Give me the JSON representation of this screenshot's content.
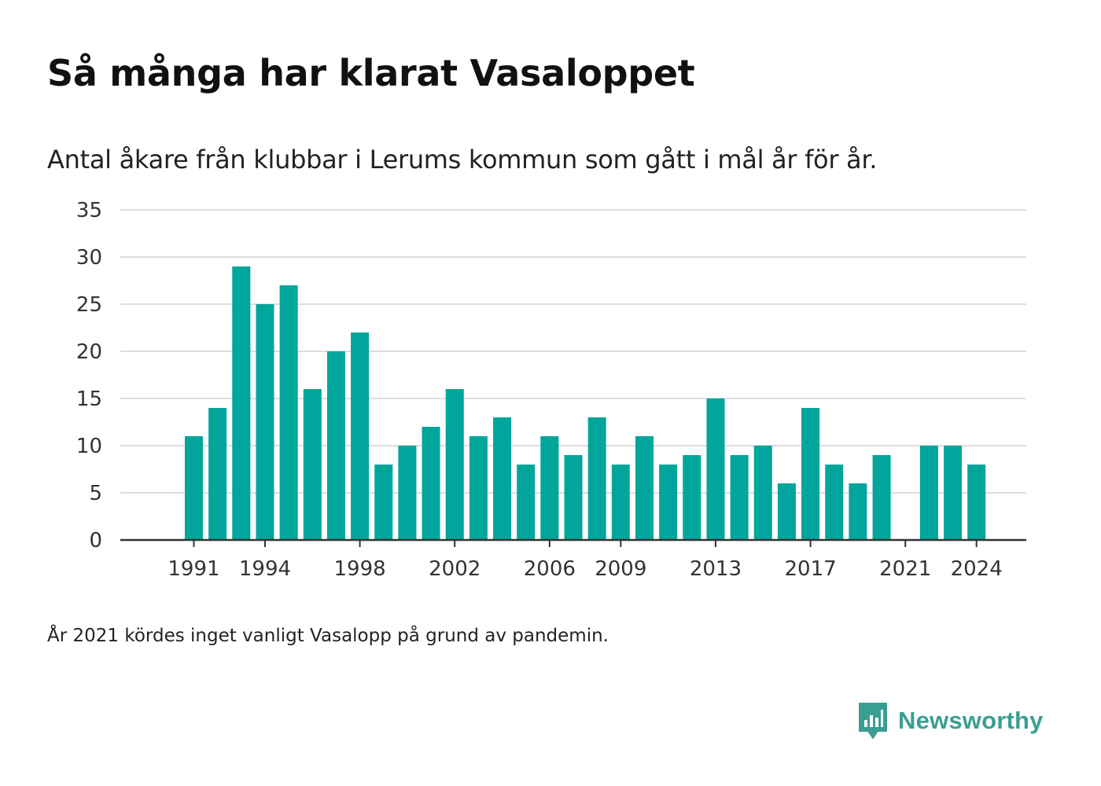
{
  "title": "Så många har klarat Vasaloppet",
  "subtitle": "Antal åkare från klubbar i Lerums kommun som gått i mål år för år.",
  "footnote": "År 2021 kördes inget vanligt Vasalopp på grund av pandemin.",
  "brand": {
    "name": "Newsworthy",
    "icon": "newsworthy-logo-icon",
    "color": "#3a9e93"
  },
  "colors": {
    "bar": "#00a59b",
    "grid": "#dddddd",
    "axis": "#333333",
    "tick_text": "#333333"
  },
  "chart_data": {
    "type": "bar",
    "x": [
      1991,
      1992,
      1993,
      1994,
      1995,
      1996,
      1997,
      1998,
      1999,
      2000,
      2001,
      2002,
      2003,
      2004,
      2005,
      2006,
      2007,
      2008,
      2009,
      2010,
      2011,
      2012,
      2013,
      2014,
      2015,
      2016,
      2017,
      2018,
      2019,
      2020,
      2021,
      2022,
      2023,
      2024
    ],
    "values": [
      11,
      14,
      29,
      25,
      27,
      16,
      20,
      22,
      8,
      10,
      12,
      16,
      11,
      13,
      8,
      11,
      9,
      13,
      8,
      11,
      8,
      9,
      15,
      9,
      10,
      6,
      14,
      8,
      6,
      9,
      null,
      10,
      10,
      8
    ],
    "x_tick_labels": [
      "1991",
      "1994",
      "1998",
      "2002",
      "2006",
      "2009",
      "2013",
      "2017",
      "2021",
      "2024"
    ],
    "y_tick_labels": [
      "0",
      "5",
      "10",
      "15",
      "20",
      "25",
      "30",
      "35"
    ],
    "ylim": [
      0,
      35
    ],
    "xlim": [
      1987.9,
      2026.1
    ],
    "grid": true,
    "legend": "none"
  }
}
